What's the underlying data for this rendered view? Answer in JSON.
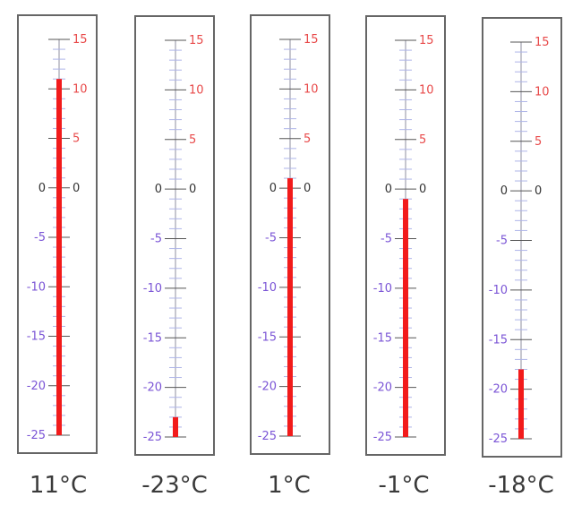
{
  "scale": {
    "min": -25,
    "max": 15,
    "left_labels": [
      "0",
      "-5",
      "-10",
      "-15",
      "-20",
      "-25"
    ],
    "right_labels": [
      "15",
      "10",
      "5",
      "0"
    ],
    "colors": {
      "frame": "#666666",
      "tick": "#555555",
      "minor_tick": "#aeb4e8",
      "negative_label": "#7b55d6",
      "positive_label": "#e84a4a",
      "zero_label": "#333333",
      "mercury": "#f21b1b"
    }
  },
  "thermometers": [
    {
      "value": 11,
      "reading": "11°C"
    },
    {
      "value": -23,
      "reading": "-23°C"
    },
    {
      "value": 1,
      "reading": "1°C"
    },
    {
      "value": -1,
      "reading": "-1°C"
    },
    {
      "value": -18,
      "reading": "-18°C"
    }
  ]
}
